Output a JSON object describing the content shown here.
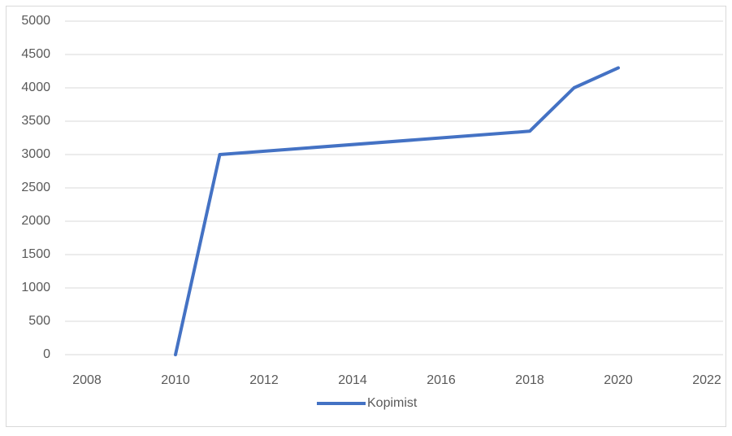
{
  "chart_data": {
    "type": "line",
    "x": [
      2010,
      2011,
      2018,
      2019,
      2020
    ],
    "series": [
      {
        "name": "Kopimist",
        "color": "#4472c4",
        "values": [
          0,
          3000,
          3350,
          4000,
          4300
        ]
      }
    ],
    "xlim": [
      2008,
      2022
    ],
    "xticks": [
      2008,
      2010,
      2012,
      2014,
      2016,
      2018,
      2020,
      2022
    ],
    "ylim": [
      0,
      5000
    ],
    "yticks": [
      0,
      500,
      1000,
      1500,
      2000,
      2500,
      3000,
      3500,
      4000,
      4500,
      5000
    ],
    "grid": true,
    "legend": "bottom"
  }
}
